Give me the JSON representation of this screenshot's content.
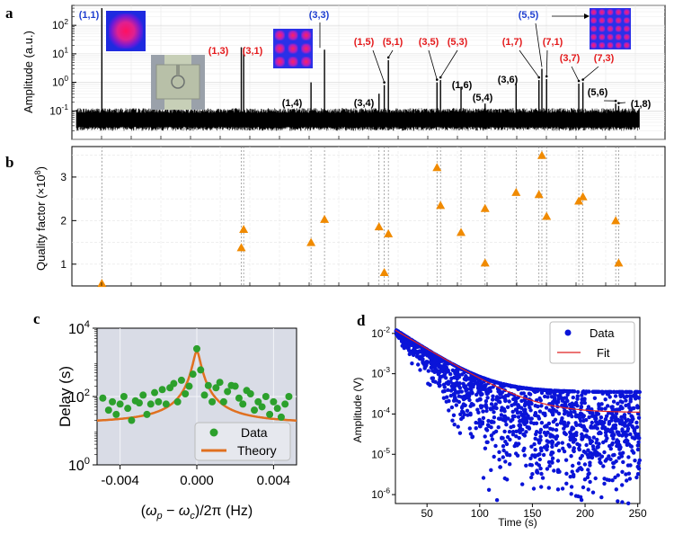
{
  "colors": {
    "blue": "#1f3fd0",
    "red": "#e41a1c",
    "black": "#000000",
    "orange": "#f08a00",
    "green": "#2ca02c",
    "fit_orange": "#e07020",
    "panel_bg": "#d9dce6",
    "data_blue": "#0a14d8",
    "fit_red": "#e02020"
  },
  "chart_data": [
    {
      "panel": "a",
      "type": "line",
      "ylabel": "Amplitude (a.u.)",
      "yscale": "log",
      "ylim": [
        0.01,
        500
      ],
      "yticks": [
        "10^{2}",
        "10^{1}",
        "10^{0}",
        "10^{-1}"
      ],
      "noise_floor": 0.05,
      "peaks": [
        {
          "label": "(1,1)",
          "x": 0.045,
          "amp": 400,
          "color": "blue"
        },
        {
          "label": "(1,3)",
          "x": 0.283,
          "amp": 17,
          "color": "red"
        },
        {
          "label": "(3,1)",
          "x": 0.287,
          "amp": 16,
          "color": "red"
        },
        {
          "label": "(1,4)",
          "x": 0.402,
          "amp": 1.0,
          "color": "black"
        },
        {
          "label": "(3,3)",
          "x": 0.425,
          "amp": 14,
          "color": "blue"
        },
        {
          "label": "(3,4)",
          "x": 0.518,
          "amp": 0.4,
          "color": "black"
        },
        {
          "label": "(1,5)",
          "x": 0.527,
          "amp": 0.8,
          "color": "red"
        },
        {
          "label": "(5,1)",
          "x": 0.534,
          "amp": 6,
          "color": "red"
        },
        {
          "label": "(3,5)",
          "x": 0.617,
          "amp": 1.0,
          "color": "red"
        },
        {
          "label": "(5,3)",
          "x": 0.623,
          "amp": 1.2,
          "color": "red"
        },
        {
          "label": "(1,6)",
          "x": 0.658,
          "amp": 0.7,
          "color": "black"
        },
        {
          "label": "(5,4)",
          "x": 0.699,
          "amp": 0.18,
          "color": "black"
        },
        {
          "label": "(3,6)",
          "x": 0.752,
          "amp": 1.0,
          "color": "black"
        },
        {
          "label": "(1,7)",
          "x": 0.791,
          "amp": 1.2,
          "color": "red"
        },
        {
          "label": "(5,5)",
          "x": 0.796,
          "amp": 3,
          "color": "blue"
        },
        {
          "label": "(7,1)",
          "x": 0.804,
          "amp": 1.3,
          "color": "red"
        },
        {
          "label": "(3,7)",
          "x": 0.859,
          "amp": 0.9,
          "color": "red"
        },
        {
          "label": "(7,3)",
          "x": 0.866,
          "amp": 1.0,
          "color": "red"
        },
        {
          "label": "(5,6)",
          "x": 0.922,
          "amp": 0.18,
          "color": "black"
        },
        {
          "label": "(1,8)",
          "x": 0.927,
          "amp": 0.15,
          "color": "black"
        }
      ]
    },
    {
      "panel": "b",
      "type": "scatter",
      "ylabel": "Quality factor (×10^8)",
      "ylim": [
        0.5,
        3.7
      ],
      "yticks": [
        "1",
        "2",
        "3"
      ],
      "points": [
        {
          "x": 0.045,
          "q": 0.56
        },
        {
          "x": 0.283,
          "q": 1.38
        },
        {
          "x": 0.287,
          "q": 1.8
        },
        {
          "x": 0.402,
          "q": 1.5
        },
        {
          "x": 0.425,
          "q": 2.03
        },
        {
          "x": 0.518,
          "q": 1.86
        },
        {
          "x": 0.527,
          "q": 0.81
        },
        {
          "x": 0.534,
          "q": 1.7
        },
        {
          "x": 0.617,
          "q": 3.22
        },
        {
          "x": 0.623,
          "q": 2.35
        },
        {
          "x": 0.658,
          "q": 1.73
        },
        {
          "x": 0.699,
          "q": 2.28
        },
        {
          "x": 0.699,
          "q": 1.03
        },
        {
          "x": 0.752,
          "q": 2.65
        },
        {
          "x": 0.791,
          "q": 2.6
        },
        {
          "x": 0.796,
          "q": 3.5
        },
        {
          "x": 0.804,
          "q": 2.1
        },
        {
          "x": 0.859,
          "q": 2.45
        },
        {
          "x": 0.866,
          "q": 2.55
        },
        {
          "x": 0.922,
          "q": 2.0
        },
        {
          "x": 0.927,
          "q": 1.03
        }
      ]
    },
    {
      "panel": "c",
      "type": "scatter",
      "xlabel": "(ω_p − ω_c)/2π (Hz)",
      "ylabel": "Delay (s)",
      "yscale": "log",
      "xlim": [
        -0.0052,
        0.0052
      ],
      "ylim": [
        1,
        10000
      ],
      "xticks": [
        "-0.004",
        "0.000",
        "0.004"
      ],
      "yticks": [
        "10^{4}",
        "10^{2}",
        "10^{0}"
      ],
      "legend": {
        "data": "Data",
        "theory": "Theory",
        "position": "bottom-right"
      },
      "theory_peak": 2000,
      "theory_width": 0.00018,
      "theory_floor": 15,
      "points": [
        [
          -0.0049,
          90
        ],
        [
          -0.0046,
          40
        ],
        [
          -0.0044,
          70
        ],
        [
          -0.0042,
          30
        ],
        [
          -0.004,
          60
        ],
        [
          -0.0038,
          100
        ],
        [
          -0.0036,
          45
        ],
        [
          -0.0034,
          20
        ],
        [
          -0.0032,
          75
        ],
        [
          -0.003,
          65
        ],
        [
          -0.0028,
          110
        ],
        [
          -0.0026,
          30
        ],
        [
          -0.0024,
          60
        ],
        [
          -0.0022,
          130
        ],
        [
          -0.002,
          70
        ],
        [
          -0.0018,
          160
        ],
        [
          -0.0016,
          60
        ],
        [
          -0.0014,
          180
        ],
        [
          -0.0012,
          240
        ],
        [
          -0.001,
          70
        ],
        [
          -0.0008,
          300
        ],
        [
          -0.0006,
          120
        ],
        [
          -0.0004,
          200
        ],
        [
          -0.0002,
          450
        ],
        [
          0.0,
          2500
        ],
        [
          0.0002,
          600
        ],
        [
          0.0004,
          110
        ],
        [
          0.0006,
          210
        ],
        [
          0.0008,
          70
        ],
        [
          0.001,
          180
        ],
        [
          0.0012,
          260
        ],
        [
          0.0014,
          70
        ],
        [
          0.0016,
          140
        ],
        [
          0.0018,
          210
        ],
        [
          0.002,
          200
        ],
        [
          0.0022,
          90
        ],
        [
          0.0024,
          60
        ],
        [
          0.0026,
          150
        ],
        [
          0.0028,
          120
        ],
        [
          0.003,
          40
        ],
        [
          0.0032,
          70
        ],
        [
          0.0034,
          50
        ],
        [
          0.0036,
          100
        ],
        [
          0.0038,
          30
        ],
        [
          0.004,
          70
        ],
        [
          0.0042,
          45
        ],
        [
          0.0044,
          25
        ],
        [
          0.0046,
          60
        ],
        [
          0.0048,
          100
        ]
      ]
    },
    {
      "panel": "d",
      "type": "scatter",
      "xlabel": "Time (s)",
      "ylabel": "Amplitude (V)",
      "yscale": "log",
      "xlim": [
        20,
        252
      ],
      "ylim": [
        6e-07,
        0.025
      ],
      "xticks": [
        "50",
        "100",
        "150",
        "200",
        "250"
      ],
      "yticks": [
        "10^{-2}",
        "10^{-3}",
        "10^{-4}",
        "10^{-5}",
        "10^{-6}"
      ],
      "legend": {
        "data": "Data",
        "fit": "Fit",
        "position": "top-right"
      },
      "fit": {
        "a0": 0.012,
        "tau": 28,
        "floor": 9e-05
      }
    }
  ],
  "panel_labels": {
    "a": "a",
    "b": "b",
    "c": "c",
    "d": "d"
  }
}
